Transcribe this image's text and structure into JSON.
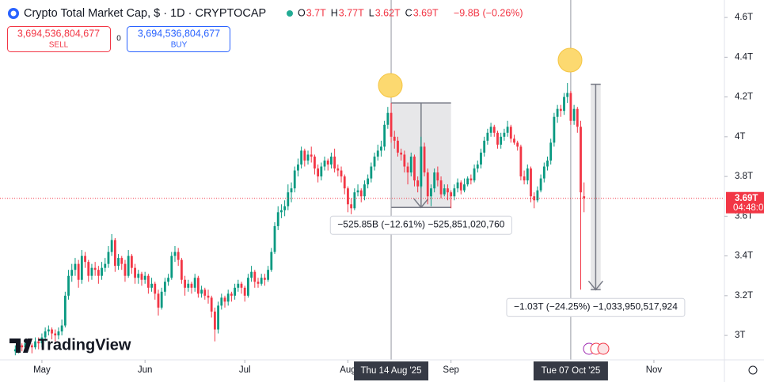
{
  "header": {
    "title": "Crypto Total Market Cap, $ · 1D · CRYPTOCAP",
    "ohlc_legend": [
      {
        "key": "O",
        "value": "3.7T"
      },
      {
        "key": "H",
        "value": "3.77T"
      },
      {
        "key": "L",
        "value": "3.62T"
      },
      {
        "key": "C",
        "value": "3.69T"
      }
    ],
    "change": "−9.8B (−0.26%)",
    "sell_price": "3,694,536,804,677",
    "sell_label": "SELL",
    "spread": "0",
    "buy_price": "3,694,536,804,677",
    "buy_label": "BUY",
    "logo": "TradingView"
  },
  "chart_data": {
    "type": "candlestick",
    "up_color": "#089981",
    "down_color": "#f23645",
    "xlim": [
      -4.6,
      213.2
    ],
    "ylim": [
      2.877,
      4.688
    ],
    "xticks": [
      {
        "value": 8,
        "label": "May"
      },
      {
        "value": 39,
        "label": "Jun"
      },
      {
        "value": 69,
        "label": "Jul"
      },
      {
        "value": 100,
        "label": "Aug"
      },
      {
        "value": 131,
        "label": "Sep"
      },
      {
        "value": 192,
        "label": "Nov"
      }
    ],
    "yticks": [
      {
        "value": 3,
        "label": "3T"
      },
      {
        "value": 3.2,
        "label": "3.2T"
      },
      {
        "value": 3.4,
        "label": "3.4T"
      },
      {
        "value": 3.6,
        "label": "3.6T"
      },
      {
        "value": 3.8,
        "label": "3.8T"
      },
      {
        "value": 4,
        "label": "4T"
      },
      {
        "value": 4.2,
        "label": "4.2T"
      },
      {
        "value": 4.4,
        "label": "4.4T"
      },
      {
        "value": 4.6,
        "label": "4.6T"
      }
    ],
    "price_tag": "3.69T",
    "countdown": "04:48:0",
    "crosshairs": [
      {
        "x": 113,
        "label": "Thu 14 Aug '25"
      },
      {
        "x": 167,
        "label": "Tue 07 Oct '25"
      }
    ],
    "measures": [
      {
        "label": "−525.85B (−12.61%) −525,851,020,760",
        "x": [
          113,
          131
        ],
        "from": 4.17,
        "to": 3.644
      },
      {
        "label": "−1.03T (−24.25%) −1,033,950,517,924",
        "x": [
          173,
          176
        ],
        "from": 4.264,
        "to": 3.23
      }
    ],
    "ohlc": [
      [
        2.92,
        2.95,
        2.9,
        2.93
      ],
      [
        2.93,
        2.97,
        2.91,
        2.95
      ],
      [
        2.95,
        2.96,
        2.92,
        2.94
      ],
      [
        2.94,
        2.98,
        2.93,
        2.96
      ],
      [
        2.96,
        2.97,
        2.93,
        2.95
      ],
      [
        2.95,
        2.96,
        2.91,
        2.94
      ],
      [
        2.94,
        2.99,
        2.93,
        2.97
      ],
      [
        2.97,
        2.99,
        2.93,
        2.96
      ],
      [
        2.96,
        3.01,
        2.94,
        2.99
      ],
      [
        2.99,
        3.04,
        2.97,
        3.02
      ],
      [
        3.02,
        3.05,
        3.0,
        3.03
      ],
      [
        3.03,
        3.04,
        2.98,
        3.01
      ],
      [
        3.01,
        3.03,
        2.97,
        3.0
      ],
      [
        3.0,
        3.04,
        2.98,
        3.02
      ],
      [
        3.02,
        3.08,
        3.0,
        3.05
      ],
      [
        3.05,
        3.22,
        3.04,
        3.2
      ],
      [
        3.2,
        3.33,
        3.18,
        3.3
      ],
      [
        3.3,
        3.36,
        3.27,
        3.33
      ],
      [
        3.33,
        3.39,
        3.3,
        3.36
      ],
      [
        3.36,
        3.38,
        3.24,
        3.28
      ],
      [
        3.28,
        3.43,
        3.26,
        3.4
      ],
      [
        3.4,
        3.42,
        3.34,
        3.37
      ],
      [
        3.37,
        3.38,
        3.27,
        3.3
      ],
      [
        3.3,
        3.36,
        3.28,
        3.34
      ],
      [
        3.34,
        3.37,
        3.3,
        3.33
      ],
      [
        3.33,
        3.35,
        3.26,
        3.3
      ],
      [
        3.3,
        3.37,
        3.28,
        3.34
      ],
      [
        3.34,
        3.39,
        3.32,
        3.36
      ],
      [
        3.36,
        3.45,
        3.34,
        3.42
      ],
      [
        3.42,
        3.51,
        3.4,
        3.48
      ],
      [
        3.48,
        3.49,
        3.32,
        3.35
      ],
      [
        3.35,
        3.41,
        3.33,
        3.39
      ],
      [
        3.39,
        3.4,
        3.33,
        3.36
      ],
      [
        3.36,
        3.38,
        3.27,
        3.3
      ],
      [
        3.3,
        3.43,
        3.29,
        3.4
      ],
      [
        3.4,
        3.41,
        3.31,
        3.34
      ],
      [
        3.34,
        3.36,
        3.26,
        3.29
      ],
      [
        3.29,
        3.33,
        3.26,
        3.31
      ],
      [
        3.31,
        3.32,
        3.25,
        3.28
      ],
      [
        3.28,
        3.32,
        3.26,
        3.3
      ],
      [
        3.3,
        3.31,
        3.21,
        3.24
      ],
      [
        3.24,
        3.29,
        3.22,
        3.26
      ],
      [
        3.26,
        3.27,
        3.18,
        3.21
      ],
      [
        3.21,
        3.23,
        3.1,
        3.14
      ],
      [
        3.14,
        3.24,
        3.13,
        3.22
      ],
      [
        3.22,
        3.29,
        3.2,
        3.27
      ],
      [
        3.27,
        3.31,
        3.25,
        3.29
      ],
      [
        3.29,
        3.42,
        3.28,
        3.4
      ],
      [
        3.4,
        3.45,
        3.37,
        3.42
      ],
      [
        3.42,
        3.44,
        3.35,
        3.38
      ],
      [
        3.38,
        3.39,
        3.26,
        3.28
      ],
      [
        3.28,
        3.3,
        3.2,
        3.24
      ],
      [
        3.24,
        3.28,
        3.22,
        3.26
      ],
      [
        3.26,
        3.27,
        3.21,
        3.24
      ],
      [
        3.24,
        3.31,
        3.22,
        3.29
      ],
      [
        3.29,
        3.3,
        3.19,
        3.21
      ],
      [
        3.21,
        3.25,
        3.19,
        3.23
      ],
      [
        3.23,
        3.24,
        3.18,
        3.2
      ],
      [
        3.2,
        3.23,
        3.16,
        3.19
      ],
      [
        3.19,
        3.2,
        3.09,
        3.12
      ],
      [
        3.12,
        3.14,
        2.97,
        3.03
      ],
      [
        3.03,
        3.17,
        3.01,
        3.15
      ],
      [
        3.15,
        3.21,
        3.13,
        3.19
      ],
      [
        3.19,
        3.2,
        3.14,
        3.17
      ],
      [
        3.17,
        3.23,
        3.15,
        3.21
      ],
      [
        3.21,
        3.22,
        3.17,
        3.2
      ],
      [
        3.2,
        3.26,
        3.18,
        3.24
      ],
      [
        3.24,
        3.28,
        3.22,
        3.26
      ],
      [
        3.26,
        3.27,
        3.21,
        3.24
      ],
      [
        3.24,
        3.25,
        3.17,
        3.2
      ],
      [
        3.2,
        3.31,
        3.19,
        3.29
      ],
      [
        3.29,
        3.35,
        3.27,
        3.32
      ],
      [
        3.32,
        3.33,
        3.24,
        3.27
      ],
      [
        3.27,
        3.29,
        3.24,
        3.26
      ],
      [
        3.26,
        3.31,
        3.25,
        3.29
      ],
      [
        3.29,
        3.31,
        3.25,
        3.28
      ],
      [
        3.28,
        3.35,
        3.27,
        3.33
      ],
      [
        3.33,
        3.44,
        3.32,
        3.42
      ],
      [
        3.42,
        3.57,
        3.41,
        3.55
      ],
      [
        3.55,
        3.65,
        3.53,
        3.62
      ],
      [
        3.62,
        3.66,
        3.59,
        3.63
      ],
      [
        3.63,
        3.68,
        3.6,
        3.65
      ],
      [
        3.65,
        3.76,
        3.63,
        3.72
      ],
      [
        3.72,
        3.77,
        3.67,
        3.74
      ],
      [
        3.74,
        3.85,
        3.72,
        3.83
      ],
      [
        3.83,
        3.89,
        3.8,
        3.86
      ],
      [
        3.86,
        3.95,
        3.84,
        3.93
      ],
      [
        3.93,
        3.94,
        3.85,
        3.88
      ],
      [
        3.88,
        3.93,
        3.86,
        3.91
      ],
      [
        3.91,
        3.95,
        3.87,
        3.9
      ],
      [
        3.9,
        3.91,
        3.81,
        3.84
      ],
      [
        3.84,
        3.86,
        3.77,
        3.8
      ],
      [
        3.8,
        3.87,
        3.78,
        3.85
      ],
      [
        3.85,
        3.9,
        3.83,
        3.88
      ],
      [
        3.88,
        3.89,
        3.83,
        3.86
      ],
      [
        3.86,
        3.92,
        3.84,
        3.9
      ],
      [
        3.9,
        3.94,
        3.82,
        3.84
      ],
      [
        3.84,
        3.86,
        3.8,
        3.83
      ],
      [
        3.83,
        3.85,
        3.77,
        3.8
      ],
      [
        3.8,
        3.81,
        3.71,
        3.74
      ],
      [
        3.74,
        3.75,
        3.62,
        3.66
      ],
      [
        3.66,
        3.69,
        3.61,
        3.64
      ],
      [
        3.64,
        3.74,
        3.63,
        3.72
      ],
      [
        3.72,
        3.76,
        3.7,
        3.73
      ],
      [
        3.73,
        3.74,
        3.67,
        3.7
      ],
      [
        3.7,
        3.78,
        3.68,
        3.76
      ],
      [
        3.76,
        3.81,
        3.74,
        3.79
      ],
      [
        3.79,
        3.87,
        3.77,
        3.85
      ],
      [
        3.85,
        3.92,
        3.83,
        3.9
      ],
      [
        3.9,
        3.96,
        3.88,
        3.93
      ],
      [
        3.93,
        3.98,
        3.9,
        3.95
      ],
      [
        3.95,
        4.08,
        3.93,
        4.06
      ],
      [
        4.06,
        4.15,
        4.04,
        4.12
      ],
      [
        4.12,
        4.17,
        3.97,
        4.0
      ],
      [
        4.0,
        4.03,
        3.94,
        3.98
      ],
      [
        3.98,
        4.0,
        3.9,
        3.92
      ],
      [
        3.92,
        3.94,
        3.88,
        3.91
      ],
      [
        3.91,
        3.93,
        3.82,
        3.85
      ],
      [
        3.85,
        3.87,
        3.76,
        3.82
      ],
      [
        3.82,
        3.92,
        3.8,
        3.9
      ],
      [
        3.9,
        3.91,
        3.75,
        3.78
      ],
      [
        3.78,
        3.8,
        3.72,
        3.75
      ],
      [
        3.75,
        4.0,
        3.74,
        3.95
      ],
      [
        3.95,
        3.97,
        3.8,
        3.82
      ],
      [
        3.82,
        3.84,
        3.66,
        3.7
      ],
      [
        3.7,
        3.76,
        3.65,
        3.74
      ],
      [
        3.74,
        3.84,
        3.72,
        3.82
      ],
      [
        3.82,
        3.85,
        3.75,
        3.78
      ],
      [
        3.78,
        3.8,
        3.69,
        3.71
      ],
      [
        3.71,
        3.76,
        3.7,
        3.74
      ],
      [
        3.74,
        3.76,
        3.68,
        3.72
      ],
      [
        3.72,
        3.73,
        3.64,
        3.7
      ],
      [
        3.7,
        3.76,
        3.68,
        3.74
      ],
      [
        3.74,
        3.79,
        3.72,
        3.77
      ],
      [
        3.77,
        3.78,
        3.71,
        3.73
      ],
      [
        3.73,
        3.79,
        3.72,
        3.76
      ],
      [
        3.76,
        3.8,
        3.75,
        3.79
      ],
      [
        3.79,
        3.81,
        3.76,
        3.78
      ],
      [
        3.78,
        3.86,
        3.77,
        3.84
      ],
      [
        3.84,
        3.88,
        3.82,
        3.86
      ],
      [
        3.86,
        3.94,
        3.84,
        3.92
      ],
      [
        3.92,
        4.0,
        3.9,
        3.98
      ],
      [
        3.98,
        4.04,
        3.96,
        4.02
      ],
      [
        4.02,
        4.07,
        4.0,
        4.05
      ],
      [
        4.05,
        4.06,
        4.0,
        4.02
      ],
      [
        4.02,
        4.03,
        3.94,
        3.96
      ],
      [
        3.96,
        4.02,
        3.94,
        4.0
      ],
      [
        4.0,
        4.04,
        3.98,
        4.02
      ],
      [
        4.02,
        4.08,
        4.0,
        4.05
      ],
      [
        4.05,
        4.06,
        3.97,
        3.99
      ],
      [
        3.99,
        4.01,
        3.96,
        3.97
      ],
      [
        3.97,
        3.98,
        3.93,
        3.95
      ],
      [
        3.95,
        3.96,
        3.78,
        3.8
      ],
      [
        3.8,
        3.83,
        3.76,
        3.78
      ],
      [
        3.78,
        3.86,
        3.76,
        3.84
      ],
      [
        3.84,
        3.85,
        3.67,
        3.7
      ],
      [
        3.7,
        3.72,
        3.64,
        3.68
      ],
      [
        3.68,
        3.75,
        3.67,
        3.73
      ],
      [
        3.73,
        3.81,
        3.72,
        3.79
      ],
      [
        3.79,
        3.87,
        3.77,
        3.85
      ],
      [
        3.85,
        3.9,
        3.83,
        3.88
      ],
      [
        3.88,
        3.99,
        3.86,
        3.97
      ],
      [
        3.97,
        4.12,
        3.95,
        4.1
      ],
      [
        4.1,
        4.16,
        4.07,
        4.14
      ],
      [
        4.14,
        4.16,
        4.1,
        4.13
      ],
      [
        4.13,
        4.22,
        4.11,
        4.2
      ],
      [
        4.2,
        4.27,
        4.17,
        4.22
      ],
      [
        4.22,
        4.23,
        4.06,
        4.08
      ],
      [
        4.08,
        4.16,
        4.06,
        4.14
      ],
      [
        4.14,
        4.15,
        4.02,
        4.05
      ],
      [
        4.05,
        4.08,
        3.23,
        3.72
      ],
      [
        3.7,
        3.77,
        3.62,
        3.69
      ]
    ]
  }
}
